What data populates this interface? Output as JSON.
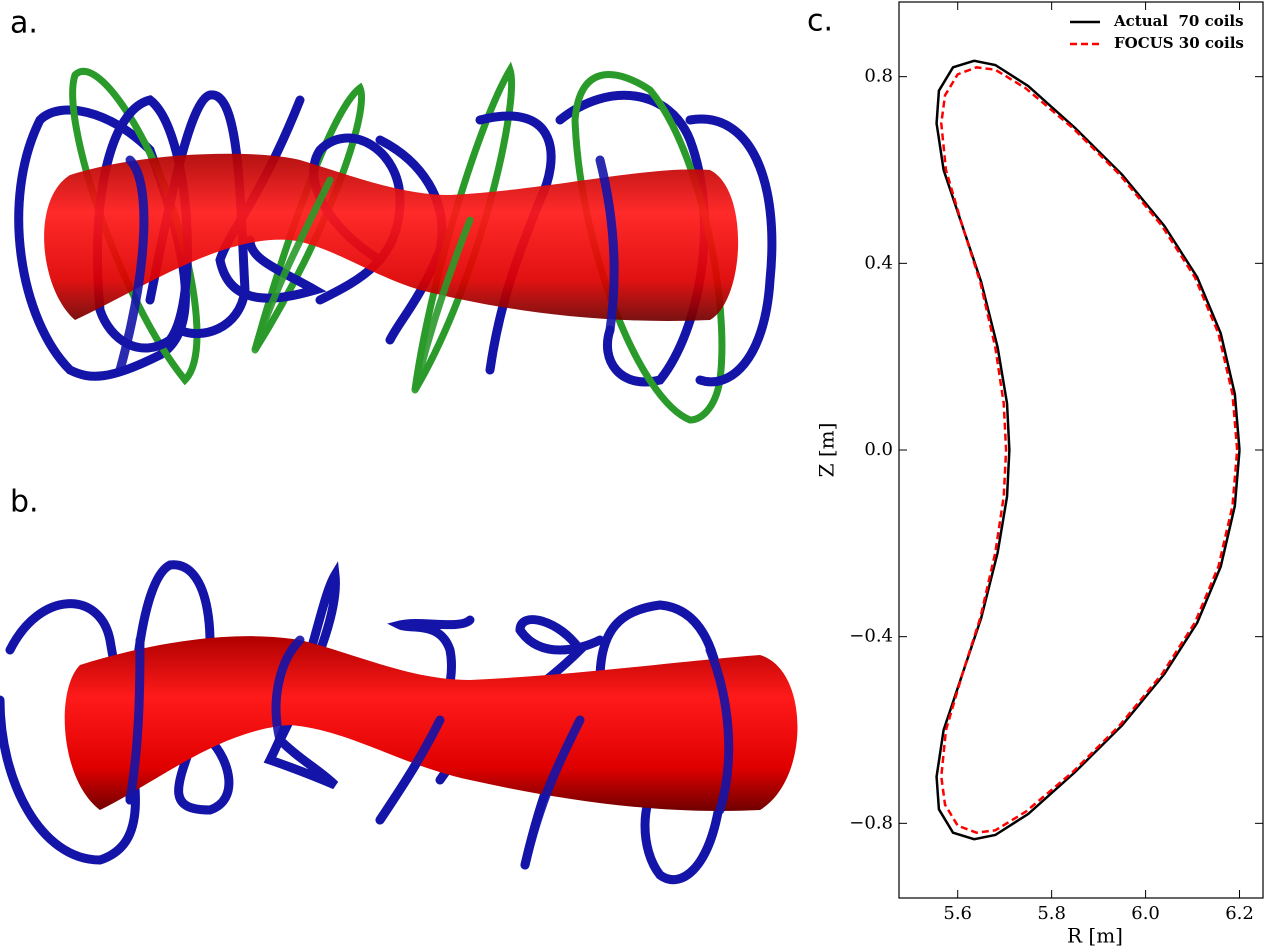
{
  "panels": [
    "a.",
    "b.",
    "c."
  ],
  "chart_data": {
    "type": "line",
    "xlabel": "R [m]",
    "ylabel": "Z [m]",
    "xlim": [
      5.475,
      6.25
    ],
    "ylim": [
      -0.96,
      0.96
    ],
    "xticks": [
      5.6,
      5.8,
      {
        "value": 6.0,
        "label": "6.0"
      },
      6.2
    ],
    "yticks": [
      {
        "value": -0.8,
        "label": "−0.8"
      },
      {
        "value": -0.4,
        "label": "−0.4"
      },
      {
        "value": 0.0,
        "label": "0.0"
      },
      0.4,
      0.8
    ],
    "legend": "upper right",
    "series": [
      {
        "name": "Actual  70 coils",
        "color": "#000000",
        "dash": "solid",
        "x": [
          6.2,
          6.19,
          6.16,
          6.11,
          6.04,
          5.95,
          5.85,
          5.75,
          5.68,
          5.635,
          5.59,
          5.56,
          5.555,
          5.57,
          5.61,
          5.65,
          5.685,
          5.705,
          5.71,
          5.705,
          5.685,
          5.65,
          5.61,
          5.57,
          5.555,
          5.56,
          5.59,
          5.635,
          5.68,
          5.75,
          5.85,
          5.95,
          6.04,
          6.11,
          6.16,
          6.19,
          6.2
        ],
        "values": [
          0,
          0.12,
          0.25,
          0.37,
          0.48,
          0.59,
          0.69,
          0.78,
          0.825,
          0.834,
          0.82,
          0.77,
          0.7,
          0.6,
          0.48,
          0.36,
          0.22,
          0.1,
          0,
          -0.1,
          -0.22,
          -0.36,
          -0.48,
          -0.6,
          -0.7,
          -0.77,
          -0.82,
          -0.834,
          -0.825,
          -0.78,
          -0.69,
          -0.59,
          -0.48,
          -0.37,
          -0.25,
          -0.12,
          0
        ]
      },
      {
        "name": "FOCUS 30 coils",
        "color": "#ff0000",
        "dash": "dashed",
        "x": [
          6.195,
          6.185,
          6.155,
          6.105,
          6.035,
          5.945,
          5.845,
          5.745,
          5.68,
          5.64,
          5.6,
          5.573,
          5.565,
          5.575,
          5.61,
          5.648,
          5.68,
          5.698,
          5.703,
          5.698,
          5.68,
          5.648,
          5.61,
          5.575,
          5.565,
          5.573,
          5.6,
          5.64,
          5.68,
          5.745,
          5.845,
          5.945,
          6.035,
          6.105,
          6.155,
          6.185,
          6.195
        ],
        "values": [
          0,
          0.12,
          0.25,
          0.37,
          0.48,
          0.59,
          0.69,
          0.775,
          0.815,
          0.82,
          0.805,
          0.76,
          0.7,
          0.6,
          0.48,
          0.36,
          0.22,
          0.1,
          0,
          -0.1,
          -0.22,
          -0.36,
          -0.48,
          -0.6,
          -0.7,
          -0.76,
          -0.805,
          -0.82,
          -0.815,
          -0.775,
          -0.69,
          -0.59,
          -0.48,
          -0.37,
          -0.25,
          -0.12,
          0
        ]
      }
    ]
  }
}
